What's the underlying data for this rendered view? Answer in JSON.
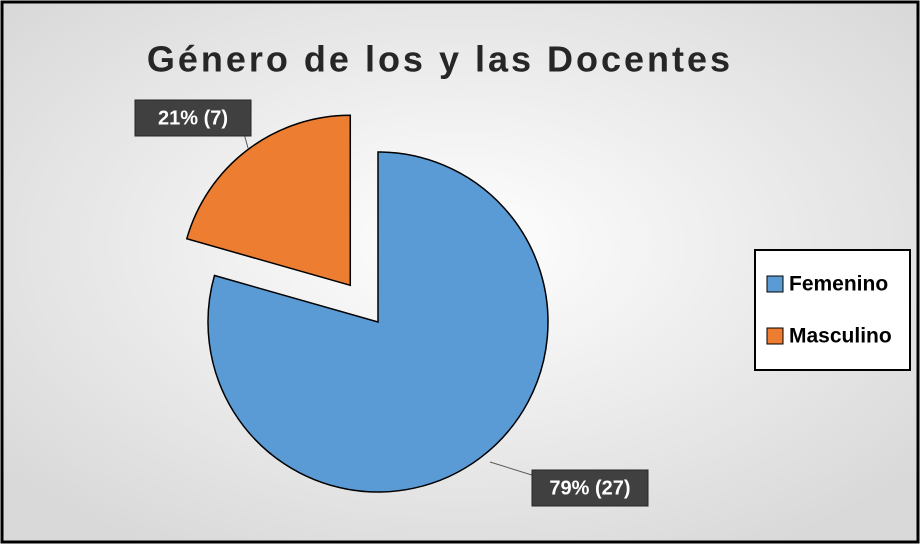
{
  "chart_data": {
    "type": "pie",
    "title": "Género de los y las Docentes",
    "categories": [
      "Femenino",
      "Masculino"
    ],
    "values": [
      27,
      7
    ],
    "value_labels": [
      "79% (27)",
      "21% (7)"
    ],
    "colors": [
      "#5b9bd5",
      "#ed7d31"
    ],
    "legend": "right"
  }
}
